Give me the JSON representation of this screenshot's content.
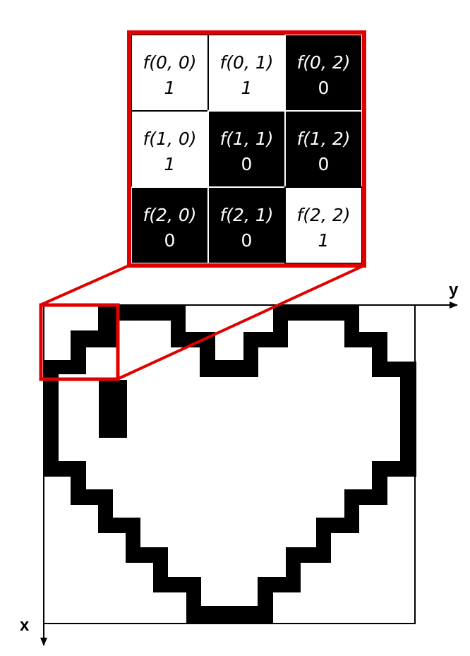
{
  "axes": {
    "x_label": "x",
    "y_label": "y"
  },
  "colors": {
    "pixel_on": "#000000",
    "pixel_off": "#ffffff",
    "highlight": "#e00000"
  },
  "zoom": {
    "cells": [
      [
        {
          "label": "f(0, 0)",
          "value": "1",
          "color": "white"
        },
        {
          "label": "f(0, 1)",
          "value": "1",
          "color": "white"
        },
        {
          "label": "f(0, 2)",
          "value": "0",
          "color": "black"
        }
      ],
      [
        {
          "label": "f(1, 0)",
          "value": "1",
          "color": "white"
        },
        {
          "label": "f(1, 1)",
          "value": "0",
          "color": "black"
        },
        {
          "label": "f(1, 2)",
          "value": "0",
          "color": "black"
        }
      ],
      [
        {
          "label": "f(2, 0)",
          "value": "0",
          "color": "black"
        },
        {
          "label": "f(2, 1)",
          "value": "0",
          "color": "black"
        },
        {
          "label": "f(2, 2)",
          "value": "1",
          "color": "white"
        }
      ]
    ]
  }
}
